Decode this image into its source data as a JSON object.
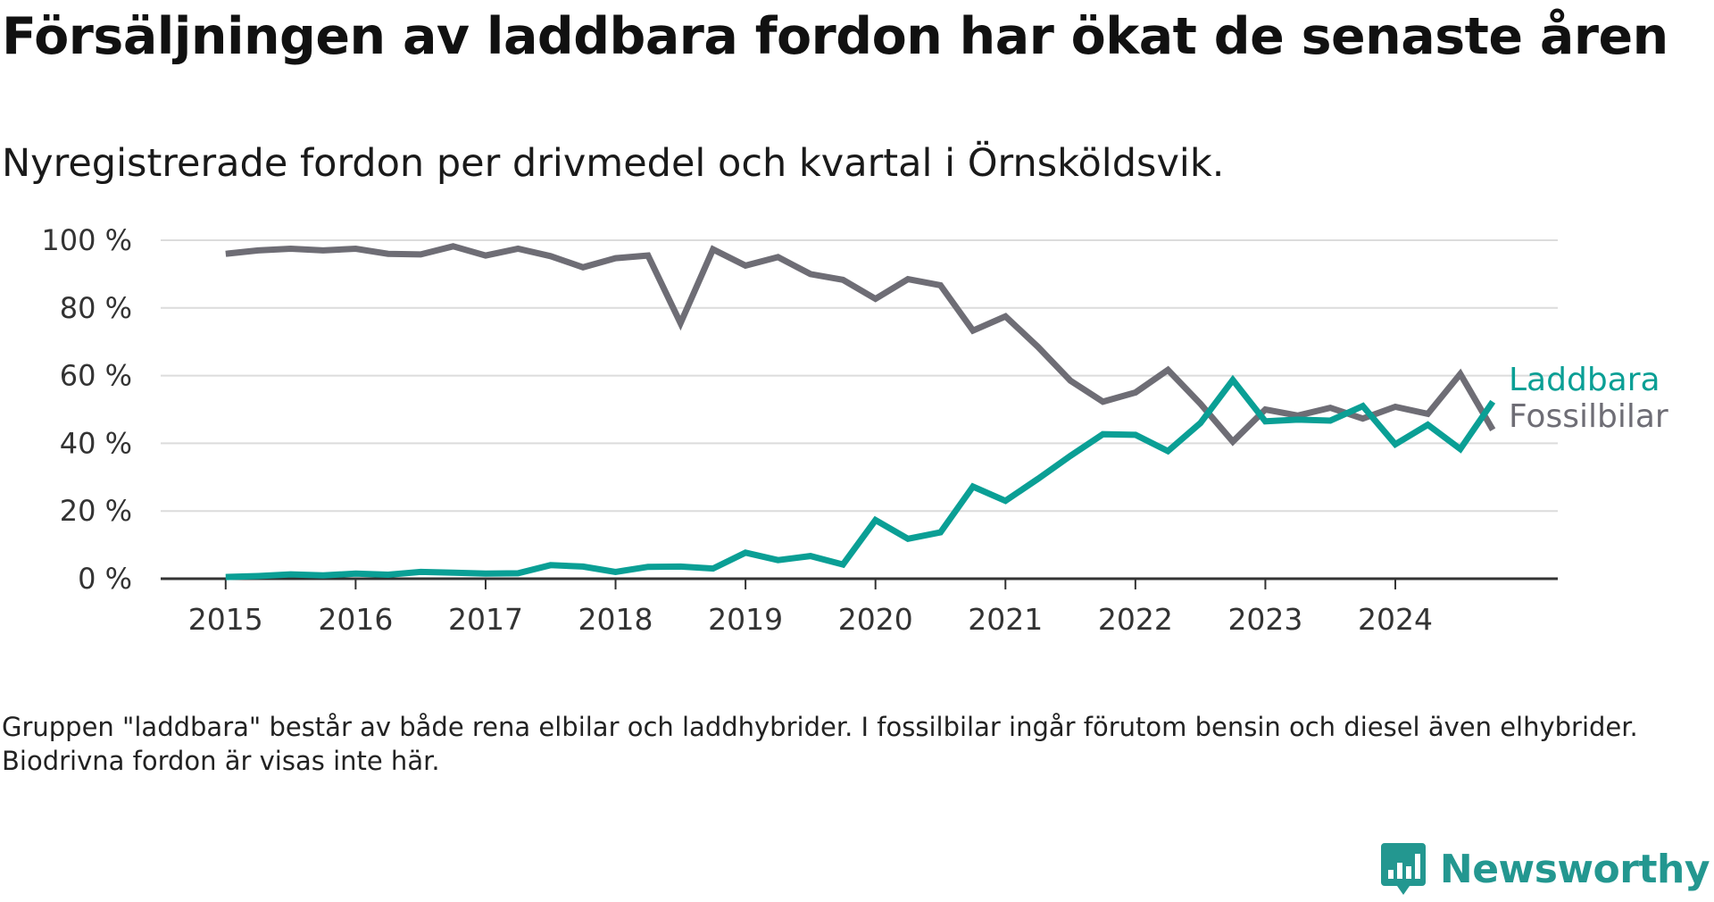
{
  "header": {
    "title": "Försäljningen av laddbara fordon har ökat de senaste åren",
    "subtitle": "Nyregistrerade fordon per drivmedel och kvartal i Örnsköldsvik."
  },
  "footer": {
    "note": "Gruppen \"laddbara\" består av både rena elbilar och laddhybrider. I fossilbilar ingår förutom bensin och diesel även elhybrider. Biodrivna fordon är visas inte här.",
    "brand": "Newsworthy",
    "brand_icon": "bar-chart-speech-bubble-icon"
  },
  "colors": {
    "laddbara": "#0a9f95",
    "fossilbilar": "#6e6d75",
    "brand": "#239790"
  },
  "chart_data": {
    "type": "line",
    "title": "Försäljningen av laddbara fordon har ökat de senaste åren",
    "subtitle": "Nyregistrerade fordon per drivmedel och kvartal i Örnsköldsvik.",
    "xlabel": "",
    "ylabel": "",
    "ylim": [
      0,
      100
    ],
    "yticks": [
      0,
      20,
      40,
      60,
      80,
      100
    ],
    "ytick_labels": [
      "0 %",
      "20 %",
      "40 %",
      "60 %",
      "80 %",
      "100 %"
    ],
    "xticks": [
      2015,
      2016,
      2017,
      2018,
      2019,
      2020,
      2021,
      2022,
      2023,
      2024
    ],
    "xtick_labels": [
      "2015",
      "2016",
      "2017",
      "2018",
      "2019",
      "2020",
      "2021",
      "2022",
      "2023",
      "2024"
    ],
    "grid": true,
    "legend": "direct labels at line ends (right)",
    "x": [
      2015.0,
      2015.25,
      2015.5,
      2015.75,
      2016.0,
      2016.25,
      2016.5,
      2016.75,
      2017.0,
      2017.25,
      2017.5,
      2017.75,
      2018.0,
      2018.25,
      2018.5,
      2018.75,
      2019.0,
      2019.25,
      2019.5,
      2019.75,
      2020.0,
      2020.25,
      2020.5,
      2020.75,
      2021.0,
      2021.25,
      2021.5,
      2021.75,
      2022.0,
      2022.25,
      2022.5,
      2022.75,
      2023.0,
      2023.25,
      2023.5,
      2023.75,
      2024.0,
      2024.25,
      2024.5,
      2024.75
    ],
    "series": [
      {
        "name": "Fossilbilar",
        "color": "#6e6d75",
        "values": [
          96,
          97,
          97.5,
          97,
          97.5,
          96,
          95.8,
          98.2,
          95.5,
          97.5,
          95.3,
          92,
          94.7,
          95.5,
          75.5,
          97.3,
          92.5,
          95,
          90,
          88.3,
          82.7,
          88.5,
          86.7,
          73.3,
          77.5,
          68.5,
          58.5,
          52.3,
          55,
          61.7,
          51.7,
          40.5,
          50,
          48.2,
          50.5,
          47.3,
          50.8,
          48.7,
          60.5,
          44
        ]
      },
      {
        "name": "Laddbara",
        "color": "#0a9f95",
        "values": [
          0.5,
          0.8,
          1.3,
          1,
          1.5,
          1.2,
          2,
          1.8,
          1.5,
          1.6,
          4,
          3.6,
          2,
          3.5,
          3.6,
          3,
          7.7,
          5.5,
          6.7,
          4.2,
          17.3,
          11.8,
          13.7,
          27.2,
          23,
          29.5,
          36.3,
          42.7,
          42.5,
          37.7,
          46,
          58.7,
          46.5,
          47,
          46.7,
          51,
          39.7,
          45.5,
          38.3,
          52.3
        ]
      }
    ]
  }
}
